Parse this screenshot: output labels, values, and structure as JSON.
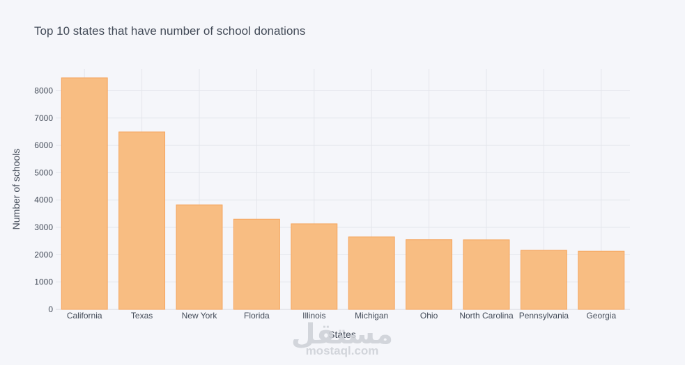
{
  "chart_data": {
    "type": "bar",
    "title": "Top 10 states that have number of school donations",
    "xlabel": "States",
    "ylabel": "Number of schools",
    "categories": [
      "California",
      "Texas",
      "New York",
      "Florida",
      "Illinois",
      "Michigan",
      "Ohio",
      "North Carolina",
      "Pennsylvania",
      "Georgia"
    ],
    "values": [
      8470,
      6490,
      3820,
      3300,
      3130,
      2650,
      2550,
      2545,
      2160,
      2130
    ],
    "ylim": [
      0,
      8800
    ],
    "yticks": [
      0,
      1000,
      2000,
      3000,
      4000,
      5000,
      6000,
      7000,
      8000
    ],
    "grid": true,
    "colors": {
      "bar_fill": "#f8bd82",
      "bar_stroke": "#f5a45c",
      "grid": "#e4e6ec",
      "background": "#f5f6fa"
    }
  },
  "watermark": {
    "arabic": "مستقل",
    "latin": "mostaql.com"
  }
}
